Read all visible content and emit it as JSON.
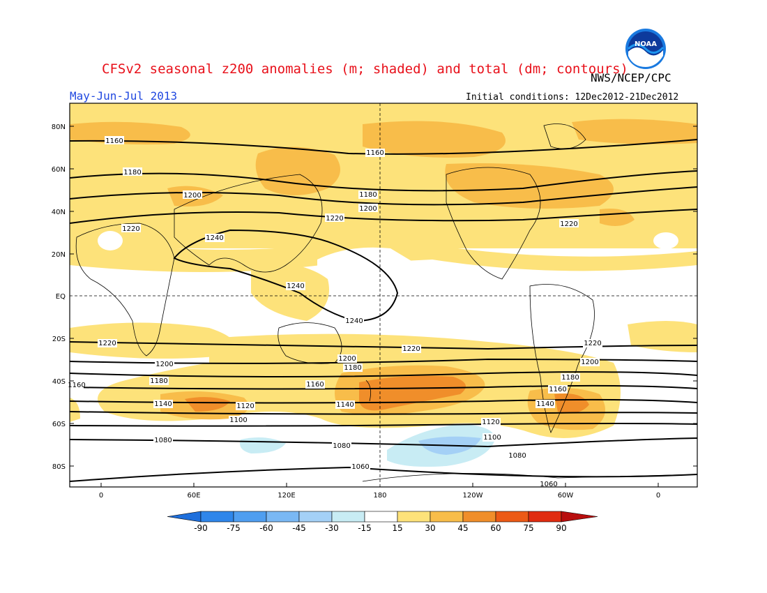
{
  "header": {
    "title": "CFSv2 seasonal z200 anomalies (m; shaded) and total (dm; contours)",
    "agency": "NWS/NCEP/CPC",
    "period": "May-Jun-Jul 2013",
    "initial_conditions": "Initial conditions: 12Dec2012-21Dec2012",
    "logo_text": "NOAA"
  },
  "map": {
    "lat_labels": [
      "80N",
      "60N",
      "40N",
      "20N",
      "EQ",
      "20S",
      "40S",
      "60S",
      "80S"
    ],
    "lon_labels": [
      "0",
      "60E",
      "120E",
      "180",
      "120W",
      "60W",
      "0"
    ],
    "contour_labels": [
      "1160",
      "1180",
      "1200",
      "1220",
      "1240",
      "1140",
      "1120",
      "1100",
      "1080",
      "1060"
    ]
  },
  "colorbar": {
    "tick_labels": [
      "-90",
      "-75",
      "-60",
      "-45",
      "-30",
      "-15",
      "15",
      "30",
      "45",
      "60",
      "75",
      "90"
    ],
    "colors": [
      "#1e6fdc",
      "#2f86ea",
      "#4f9ef0",
      "#7ab8f4",
      "#a4d0f6",
      "#c8ecf4",
      "#ffffff",
      "#fde27a",
      "#f8bd4a",
      "#f08e2a",
      "#ec5a16",
      "#e02c10",
      "#b80e0e"
    ]
  }
}
